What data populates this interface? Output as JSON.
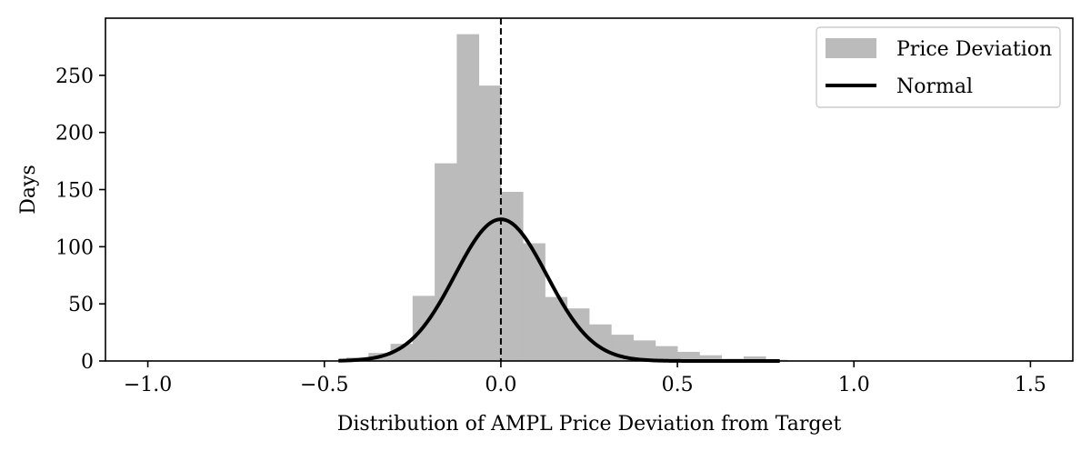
{
  "chart_data": {
    "type": "bar",
    "title": "",
    "xlabel": "Distribution of AMPL Price Deviation from Target",
    "ylabel": "Days",
    "xlim": [
      -1.12,
      1.62
    ],
    "ylim": [
      0,
      300
    ],
    "grid": false,
    "legend_position": "top-right",
    "x_ticks": [
      -1.0,
      -0.5,
      0.0,
      0.5,
      1.0,
      1.5
    ],
    "x_tick_labels": [
      "−1.0",
      "−0.5",
      "0.0",
      "0.5",
      "1.0",
      "1.5"
    ],
    "y_ticks": [
      0,
      50,
      100,
      150,
      200,
      250
    ],
    "y_tick_labels": [
      "0",
      "50",
      "100",
      "150",
      "200",
      "250"
    ],
    "histogram": {
      "name": "Price Deviation",
      "color": "#bbbbbb",
      "bin_width": 0.0625,
      "bin_starts": [
        -0.4375,
        -0.375,
        -0.3125,
        -0.25,
        -0.1875,
        -0.125,
        -0.0625,
        0.0,
        0.0625,
        0.125,
        0.1875,
        0.25,
        0.3125,
        0.375,
        0.4375,
        0.5,
        0.5625,
        0.625,
        0.6875,
        0.75
      ],
      "counts": [
        3,
        7,
        15,
        57,
        173,
        286,
        241,
        148,
        103,
        56,
        46,
        32,
        23,
        18,
        13,
        8,
        5,
        2,
        4,
        1
      ]
    },
    "normal": {
      "name": "Normal",
      "color": "#000000",
      "mean": 0.0,
      "std": 0.13,
      "peak": 124,
      "x_range": [
        -0.46,
        0.79
      ]
    },
    "reference_line": {
      "x": 0.0,
      "style": "dashed",
      "color": "#000000"
    }
  }
}
